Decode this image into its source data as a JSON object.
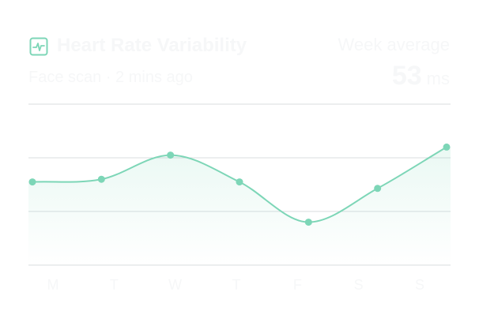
{
  "header": {
    "icon": "heart-pulse-icon",
    "title": "Heart Rate Variability",
    "subtitle": "Face scan · 2 mins ago"
  },
  "summary": {
    "label": "Week average",
    "value": "53",
    "unit": "ms"
  },
  "colors": {
    "accent": "#7dd6b7",
    "grid": "#d9dcdf",
    "faded_text": "#f6f7f8"
  },
  "chart_data": {
    "type": "area",
    "categories": [
      "M",
      "T",
      "W",
      "T",
      "F",
      "S",
      "S"
    ],
    "values": [
      1.55,
      1.6,
      2.05,
      1.55,
      0.8,
      1.43,
      2.2
    ],
    "ylim": [
      0,
      3
    ],
    "grid": true,
    "smooth": true
  }
}
